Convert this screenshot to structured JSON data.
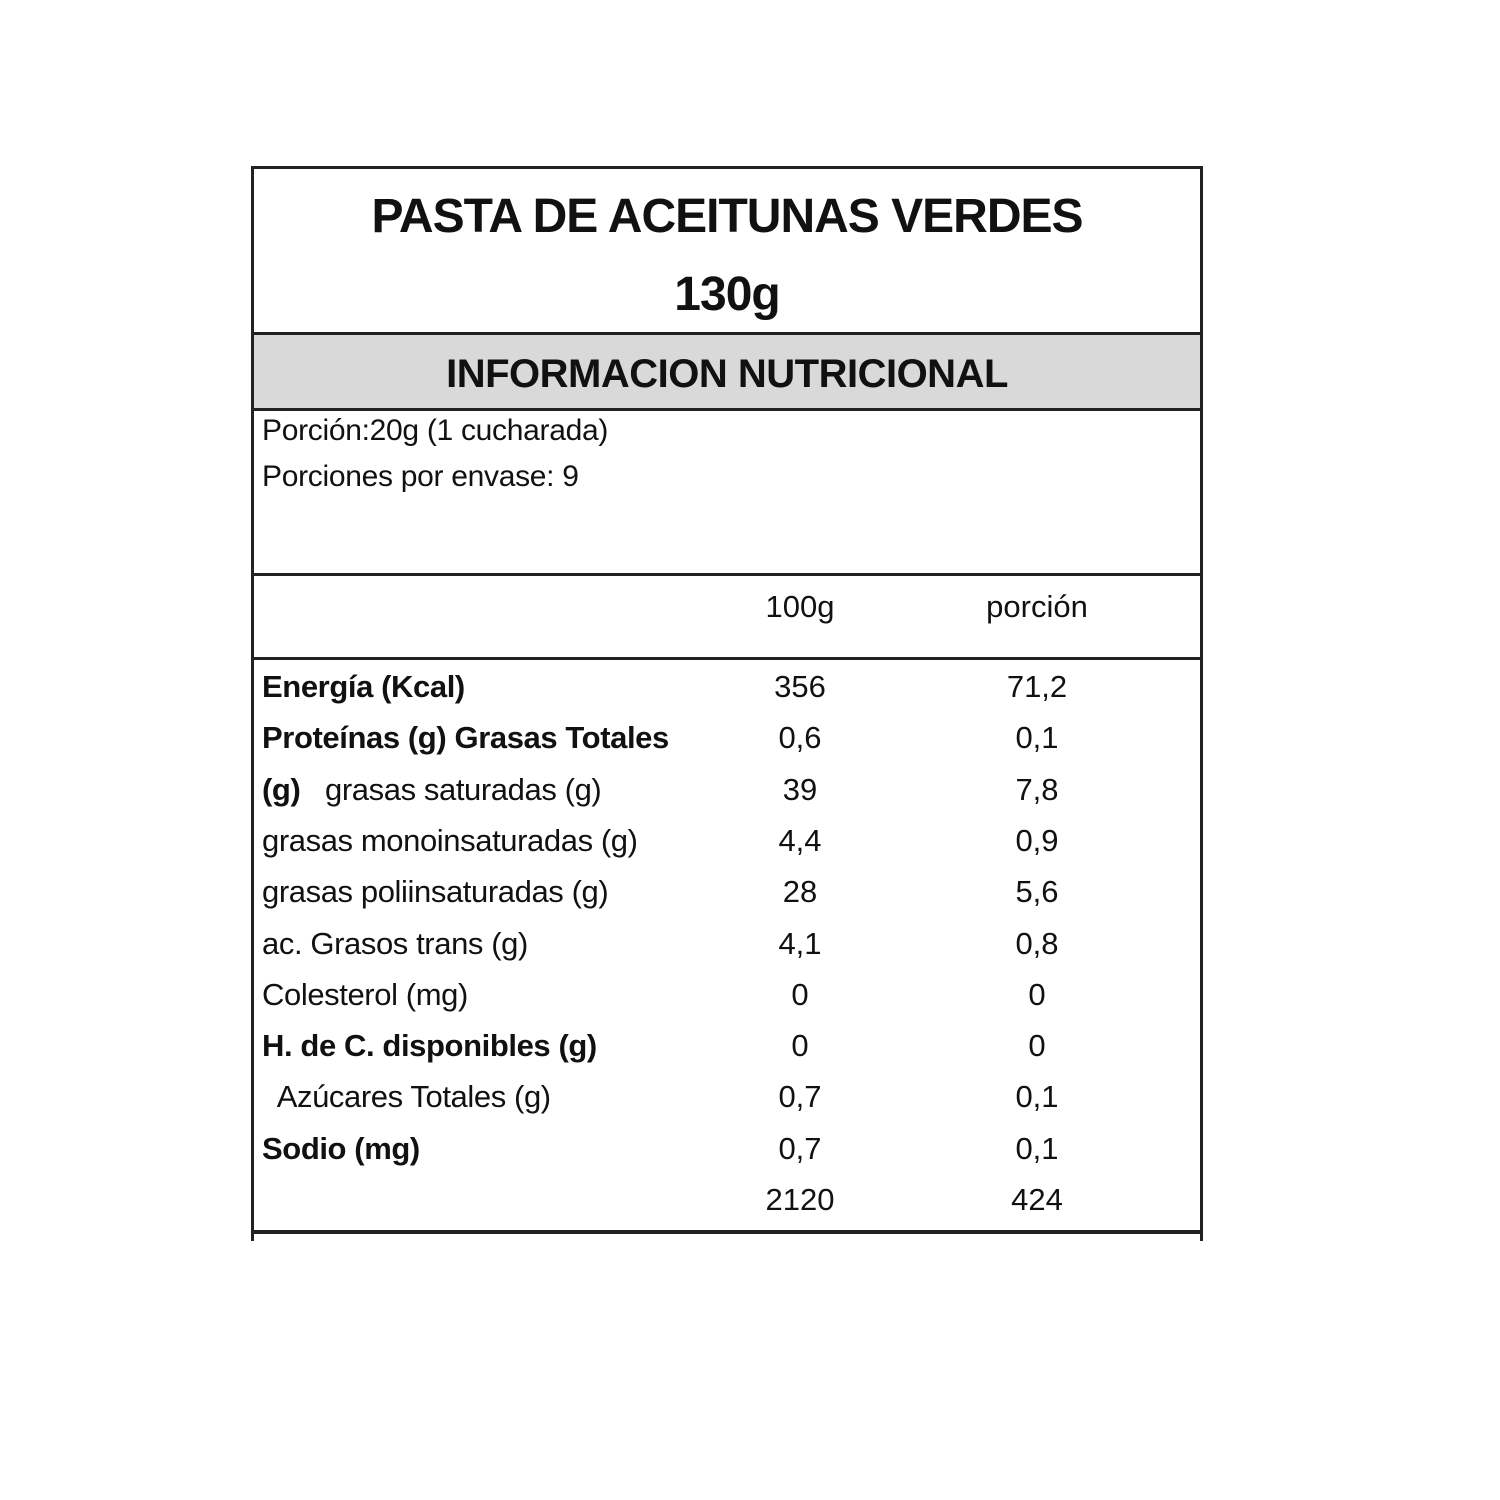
{
  "product": {
    "name": "PASTA DE ACEITUNAS VERDES",
    "weight": "130g"
  },
  "section_title": "INFORMACION NUTRICIONAL",
  "serving": {
    "portion": "Porción:20g (1 cucharada)",
    "servings_per_container": "Porciones por envase: 9"
  },
  "columns": {
    "per100": "100g",
    "per_portion": "porción"
  },
  "rows": [
    {
      "segments": [
        {
          "text": "Energía (Kcal)",
          "bold": true
        }
      ],
      "per100": "356",
      "portion": "71,2"
    },
    {
      "segments": [
        {
          "text": "Proteínas (g) Grasas Totales",
          "bold": true
        }
      ],
      "per100": "0,6",
      "portion": "0,1"
    },
    {
      "segments": [
        {
          "text": "(g)",
          "bold": true
        },
        {
          "text": "   grasas saturadas (g)",
          "bold": false
        }
      ],
      "per100": "39",
      "portion": "7,8"
    },
    {
      "segments": [
        {
          "text": "grasas monoinsaturadas (g)",
          "bold": false
        }
      ],
      "per100": "4,4",
      "portion": "0,9"
    },
    {
      "segments": [
        {
          "text": "grasas poliinsaturadas (g)",
          "bold": false
        }
      ],
      "per100": "28",
      "portion": "5,6"
    },
    {
      "segments": [
        {
          "text": "ac. Grasos trans (g)",
          "bold": false
        }
      ],
      "per100": "4,1",
      "portion": "0,8"
    },
    {
      "segments": [
        {
          "text": "Colesterol (mg)",
          "bold": false
        }
      ],
      "per100": "0",
      "portion": "0"
    },
    {
      "segments": [
        {
          "text": "H. de C. disponibles (g)",
          "bold": true
        }
      ],
      "per100": "0",
      "portion": "0"
    },
    {
      "segments": [
        {
          "text": "  Azúcares Totales (g)",
          "bold": false
        }
      ],
      "per100": "0,7",
      "portion": "0,1"
    },
    {
      "segments": [
        {
          "text": "Sodio (mg)",
          "bold": true
        }
      ],
      "per100": "0,7",
      "portion": "0,1"
    },
    {
      "segments": [],
      "per100": "2120",
      "portion": "424"
    }
  ]
}
